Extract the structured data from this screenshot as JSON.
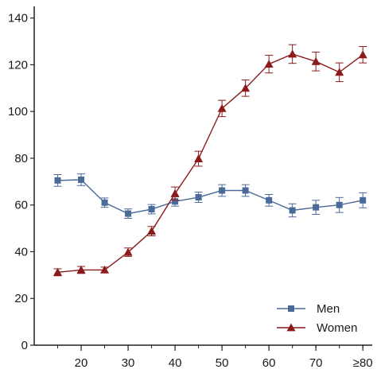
{
  "chart_data": {
    "type": "line",
    "title": "",
    "xlabel": "",
    "ylabel": "",
    "x": [
      15,
      20,
      25,
      30,
      35,
      40,
      45,
      50,
      55,
      60,
      65,
      70,
      75,
      80
    ],
    "xticks": [
      20,
      30,
      40,
      50,
      60,
      70,
      80
    ],
    "xtick_labels": [
      "20",
      "30",
      "40",
      "50",
      "60",
      "70",
      "≥80"
    ],
    "xlim": [
      10,
      82
    ],
    "ylim": [
      0,
      145
    ],
    "yticks": [
      0,
      20,
      40,
      60,
      80,
      100,
      120,
      140
    ],
    "ytick_labels": [
      "0",
      "20",
      "40",
      "60",
      "80",
      "100",
      "120",
      "140"
    ],
    "grid": false,
    "legend_position": "bottom-right",
    "series": [
      {
        "name": "Men",
        "color": "#4a6a9a",
        "marker": "square",
        "values": [
          70.5,
          70.8,
          61,
          56.3,
          58.2,
          61.5,
          63.3,
          66.2,
          66.2,
          62,
          57.7,
          59,
          60,
          62
        ],
        "error": [
          2.5,
          2.5,
          2,
          2,
          2,
          2,
          2.2,
          2.5,
          2.5,
          2.5,
          2.8,
          3,
          3.2,
          3.2
        ]
      },
      {
        "name": "Women",
        "color": "#8b1a1a",
        "marker": "triangle",
        "values": [
          31.2,
          32.2,
          32.2,
          39.8,
          48.8,
          64.9,
          79.8,
          101.3,
          110,
          120.3,
          124.6,
          121.4,
          116.8,
          124.3
        ],
        "error": [
          1.5,
          1.5,
          1.2,
          1.8,
          2,
          2.8,
          3.2,
          3.5,
          3.5,
          3.8,
          4,
          4,
          4,
          3.5
        ]
      }
    ]
  }
}
